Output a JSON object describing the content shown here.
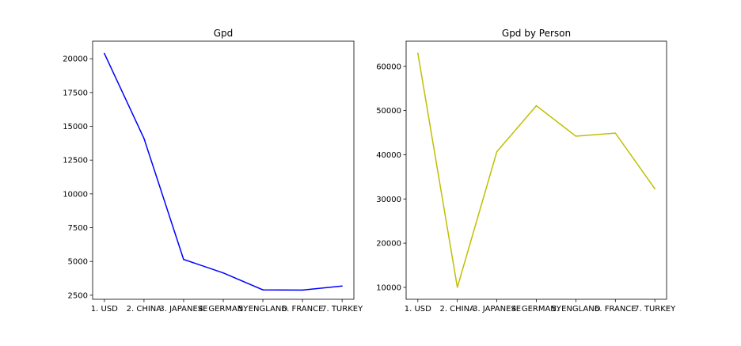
{
  "chart_data": [
    {
      "type": "line",
      "title": "Gpd",
      "xlabel": "",
      "ylabel": "",
      "categories": [
        "1. USD",
        "2. CHINA",
        "3. JAPANESE",
        "4. GERMANY",
        "5. ENGLAND",
        "6. FRANCE",
        "7. TURKEY"
      ],
      "series": [
        {
          "values": [
            20400,
            14100,
            5150,
            4150,
            2900,
            2880,
            3180
          ],
          "color": "#0000ff"
        }
      ],
      "ylim": [
        2200,
        21300
      ],
      "yticks": [
        2500,
        5000,
        7500,
        10000,
        12500,
        15000,
        17500,
        20000
      ],
      "grid": false,
      "legend": "none"
    },
    {
      "type": "line",
      "title": "Gpd by Person",
      "xlabel": "",
      "ylabel": "",
      "categories": [
        "1. USD",
        "2. CHINA",
        "3. JAPANESE",
        "4. GERMANY",
        "5. ENGLAND",
        "6. FRANCE",
        "7. TURKEY"
      ],
      "series": [
        {
          "values": [
            63000,
            10000,
            40700,
            51100,
            44200,
            44900,
            32300
          ],
          "color": "#bfbf00"
        }
      ],
      "ylim": [
        7300,
        65700
      ],
      "yticks": [
        10000,
        20000,
        30000,
        40000,
        50000,
        60000
      ],
      "grid": false,
      "legend": "none"
    }
  ]
}
